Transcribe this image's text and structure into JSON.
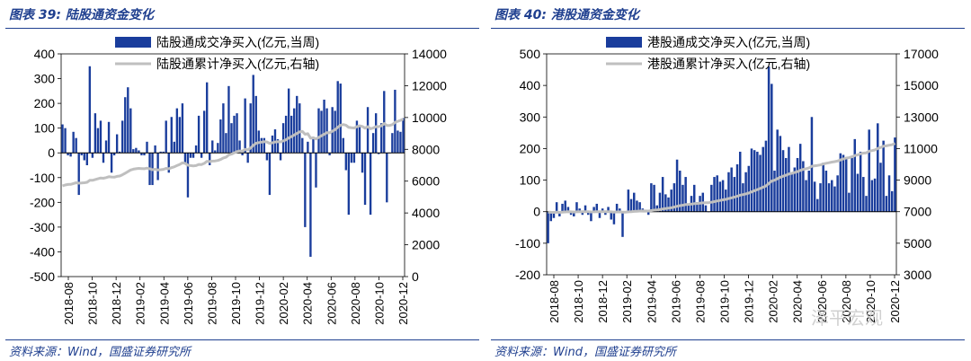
{
  "footer_source": "资料来源：Wind，国盛证券研究所",
  "watermark": "泽平宏观",
  "colors": {
    "bar": "#1a3d9c",
    "line": "#bfbfbf",
    "heading": "#1f3f8f"
  },
  "chart_data": [
    {
      "type": "bar+line",
      "title": "图表 39:  陆股通资金变化",
      "legend": [
        "陆股通成交净买入(亿元,当周)",
        "陆股通累计净买入(亿元,右轴)"
      ],
      "x_tick_labels": [
        "2018-08",
        "2018-10",
        "2018-12",
        "2019-02",
        "2019-04",
        "2019-06",
        "2019-08",
        "2019-10",
        "2019-12",
        "2020-02",
        "2020-04",
        "2020-06",
        "2020-08",
        "2020-10",
        "2020-12"
      ],
      "y_left": {
        "min": -500,
        "max": 400,
        "step": 100,
        "ticks": [
          "-500",
          "-400",
          "-300",
          "-200",
          "-100",
          "0",
          "100",
          "200",
          "300",
          "400"
        ]
      },
      "y_right": {
        "min": 0,
        "max": 14000,
        "step": 2000,
        "ticks": [
          "0",
          "2000",
          "4000",
          "6000",
          "8000",
          "10000",
          "12000",
          "14000"
        ]
      },
      "weekly_net_buy": [
        115,
        100,
        -10,
        -15,
        85,
        60,
        -170,
        -10,
        -30,
        -50,
        350,
        -20,
        160,
        100,
        130,
        -40,
        50,
        125,
        -80,
        -10,
        75,
        5,
        130,
        225,
        265,
        180,
        15,
        20,
        10,
        -10,
        -10,
        45,
        -130,
        -130,
        30,
        -110,
        5,
        5,
        130,
        -80,
        145,
        45,
        180,
        145,
        200,
        -40,
        -180,
        -20,
        -20,
        30,
        150,
        -20,
        170,
        285,
        -50,
        50,
        10,
        40,
        135,
        200,
        80,
        270,
        120,
        150,
        160,
        50,
        -10,
        220,
        -40,
        200,
        315,
        230,
        90,
        60,
        60,
        -30,
        -170,
        70,
        95,
        55,
        -30,
        120,
        150,
        260,
        150,
        180,
        230,
        200,
        60,
        -300,
        45,
        -420,
        55,
        -140,
        180,
        170,
        215,
        180,
        -10,
        185,
        170,
        290,
        280,
        60,
        -70,
        -250,
        -40,
        -40,
        130,
        110,
        -80,
        -210,
        185,
        -250,
        80,
        160,
        -5,
        120,
        250,
        -200,
        0,
        80,
        255,
        90,
        85,
        140
      ],
      "cumulative_net_buy": [
        5700,
        5760,
        5790,
        5800,
        5850,
        5900,
        5870,
        5880,
        5900,
        5930,
        6050,
        6050,
        6100,
        6150,
        6200,
        6180,
        6220,
        6280,
        6260,
        6250,
        6300,
        6320,
        6400,
        6500,
        6600,
        6700,
        6750,
        6780,
        6800,
        6790,
        6780,
        6820,
        6780,
        6720,
        6760,
        6700,
        6720,
        6740,
        6800,
        6780,
        6850,
        6900,
        6980,
        7050,
        7150,
        7120,
        7000,
        6980,
        6960,
        6980,
        7050,
        7040,
        7120,
        7250,
        7230,
        7260,
        7270,
        7300,
        7360,
        7460,
        7500,
        7650,
        7700,
        7780,
        7860,
        7900,
        7880,
        8000,
        7970,
        8080,
        8250,
        8380,
        8420,
        8450,
        8480,
        8460,
        8380,
        8410,
        8460,
        8480,
        8470,
        8530,
        8600,
        8720,
        8800,
        8900,
        9000,
        9100,
        9130,
        8950,
        8980,
        8700,
        8730,
        8650,
        8750,
        8850,
        8950,
        9050,
        9040,
        9140,
        9230,
        9380,
        9520,
        9560,
        9520,
        9380,
        9360,
        9340,
        9420,
        9480,
        9440,
        9330,
        9430,
        9290,
        9340,
        9430,
        9420,
        9480,
        9620,
        9500,
        9500,
        9550,
        9700,
        9760,
        9820,
        9910
      ]
    },
    {
      "type": "bar+line",
      "title": "图表 40:  港股通资金变化",
      "legend": [
        "港股通成交净买入(亿元,当周)",
        "港股通累计净买入(亿元,右轴)"
      ],
      "x_tick_labels": [
        "2018-08",
        "2018-10",
        "2018-12",
        "2019-02",
        "2019-04",
        "2019-06",
        "2019-08",
        "2019-10",
        "2019-12",
        "2020-02",
        "2020-04",
        "2020-06",
        "2020-08",
        "2020-10",
        "2020-12"
      ],
      "y_left": {
        "min": -200,
        "max": 500,
        "step": 100,
        "ticks": [
          "-200",
          "-100",
          "0",
          "100",
          "200",
          "300",
          "400",
          "500"
        ]
      },
      "y_right": {
        "min": 3000,
        "max": 17000,
        "step": 2000,
        "ticks": [
          "3000",
          "5000",
          "7000",
          "9000",
          "11000",
          "13000",
          "15000",
          "17000"
        ]
      },
      "weekly_net_buy": [
        -100,
        -30,
        -20,
        30,
        -15,
        25,
        35,
        15,
        -10,
        -15,
        30,
        10,
        -10,
        20,
        -10,
        -30,
        15,
        25,
        -20,
        10,
        -10,
        15,
        -25,
        -40,
        25,
        10,
        -80,
        -5,
        70,
        40,
        60,
        35,
        30,
        10,
        5,
        -10,
        90,
        85,
        20,
        60,
        110,
        55,
        45,
        70,
        90,
        165,
        130,
        85,
        110,
        20,
        50,
        85,
        30,
        50,
        60,
        20,
        0,
        85,
        110,
        115,
        95,
        100,
        70,
        125,
        140,
        110,
        150,
        190,
        90,
        125,
        145,
        200,
        195,
        190,
        180,
        205,
        225,
        460,
        405,
        130,
        260,
        240,
        195,
        170,
        205,
        120,
        140,
        170,
        215,
        160,
        100,
        130,
        300,
        95,
        40,
        90,
        155,
        130,
        90,
        100,
        80,
        115,
        185,
        180,
        170,
        60,
        170,
        230,
        120,
        190,
        110,
        50,
        260,
        100,
        105,
        280,
        155,
        225,
        50,
        115,
        65,
        235
      ],
      "cumulative_net_buy": [
        6970,
        6960,
        6955,
        6965,
        6955,
        6975,
        6985,
        6995,
        6990,
        6980,
        6990,
        7000,
        6995,
        7000,
        6995,
        6985,
        6990,
        7000,
        6995,
        7000,
        6995,
        7000,
        6990,
        6975,
        6985,
        6990,
        6970,
        6970,
        6990,
        7000,
        7020,
        7030,
        7040,
        7045,
        7045,
        7040,
        7070,
        7100,
        7110,
        7130,
        7170,
        7200,
        7220,
        7250,
        7290,
        7340,
        7380,
        7410,
        7450,
        7460,
        7480,
        7510,
        7520,
        7540,
        7560,
        7570,
        7570,
        7600,
        7640,
        7680,
        7710,
        7750,
        7780,
        7830,
        7880,
        7920,
        7980,
        8050,
        8080,
        8130,
        8180,
        8260,
        8330,
        8400,
        8470,
        8550,
        8630,
        8790,
        8940,
        8990,
        9090,
        9180,
        9250,
        9310,
        9390,
        9430,
        9480,
        9540,
        9620,
        9680,
        9720,
        9770,
        9880,
        9910,
        9930,
        9960,
        10020,
        10070,
        10100,
        10140,
        10170,
        10210,
        10280,
        10340,
        10400,
        10420,
        10480,
        10560,
        10600,
        10670,
        10710,
        10730,
        10830,
        10870,
        10910,
        11010,
        11070,
        11150,
        11170,
        11210,
        11240,
        11330
      ]
    }
  ]
}
